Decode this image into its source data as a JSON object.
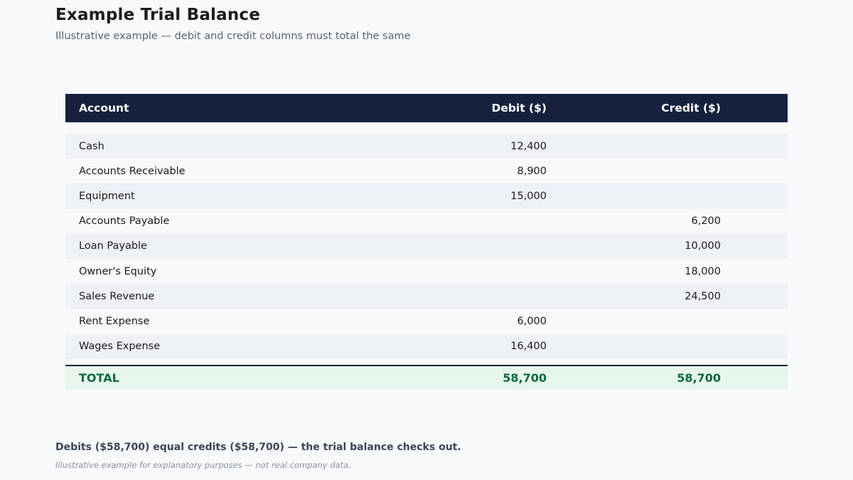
{
  "header": {
    "title": "Example Trial Balance",
    "subtitle": "Illustrative example — debit and credit columns must total the same"
  },
  "table": {
    "columns": {
      "account": "Account",
      "debit": "Debit ($)",
      "credit": "Credit ($)"
    },
    "rows": [
      {
        "account": "Cash",
        "debit": "12,400",
        "credit": ""
      },
      {
        "account": "Accounts Receivable",
        "debit": "8,900",
        "credit": ""
      },
      {
        "account": "Equipment",
        "debit": "15,000",
        "credit": ""
      },
      {
        "account": "Accounts Payable",
        "debit": "",
        "credit": "6,200"
      },
      {
        "account": "Loan Payable",
        "debit": "",
        "credit": "10,000"
      },
      {
        "account": "Owner's Equity",
        "debit": "",
        "credit": "18,000"
      },
      {
        "account": "Sales Revenue",
        "debit": "",
        "credit": "24,500"
      },
      {
        "account": "Rent Expense",
        "debit": "6,000",
        "credit": ""
      },
      {
        "account": "Wages Expense",
        "debit": "16,400",
        "credit": ""
      }
    ],
    "total": {
      "label": "TOTAL",
      "debit": "58,700",
      "credit": "58,700"
    }
  },
  "footer": {
    "note": "Debits ($58,700) equal credits ($58,700) — the trial balance checks out.",
    "disclaimer": "Illustrative example for explanatory purposes — not real company data."
  },
  "colors": {
    "header_bg": "#16223d",
    "row_alt_bg": "#eef1f6",
    "total_bg": "#e6f6ed",
    "total_text": "#0f6b3c"
  }
}
